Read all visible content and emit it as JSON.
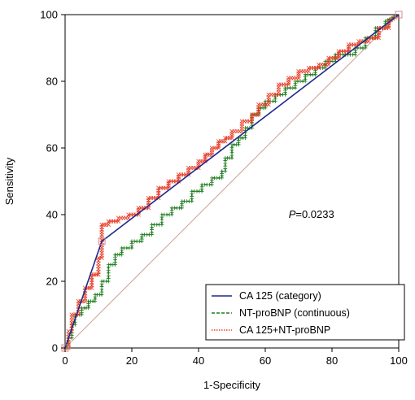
{
  "chart_data": {
    "type": "line",
    "xlabel": "1-Specificity",
    "ylabel": "Sensitivity",
    "xlim": [
      0,
      100
    ],
    "ylim": [
      0,
      100
    ],
    "xticks": [
      "0",
      "20",
      "40",
      "60",
      "80",
      "100"
    ],
    "yticks": [
      "0",
      "20",
      "40",
      "60",
      "80",
      "100"
    ],
    "legend_position": "bottom-right",
    "annotation": {
      "prefix": "P",
      "value": "=0.0233",
      "x": 67,
      "y": 39
    },
    "reference_line": {
      "x": [
        0,
        100
      ],
      "y": [
        0,
        100
      ],
      "color": "#c9a49a"
    },
    "series": [
      {
        "name": "CA 125 (category)",
        "color": "#1f2a8a",
        "style": "solid",
        "marker": "none",
        "x": [
          0,
          11,
          100
        ],
        "y": [
          0,
          32,
          100
        ]
      },
      {
        "name": "NT-proBNP (continuous)",
        "color": "#1e7d1e",
        "style": "dashed",
        "marker": "plus",
        "x": [
          0,
          1,
          1,
          2,
          2,
          3,
          3,
          5,
          5,
          7,
          7,
          9,
          9,
          11,
          11,
          13,
          13,
          15,
          15,
          17,
          17,
          20,
          20,
          23,
          23,
          26,
          26,
          29,
          29,
          32,
          32,
          35,
          35,
          38,
          38,
          41,
          41,
          44,
          44,
          47,
          47,
          48,
          48,
          50,
          50,
          52,
          52,
          54,
          54,
          56,
          56,
          58,
          58,
          60,
          60,
          63,
          63,
          66,
          66,
          69,
          69,
          72,
          72,
          75,
          75,
          78,
          78,
          81,
          81,
          84,
          84,
          87,
          87,
          90,
          90,
          93,
          93,
          96,
          96,
          100
        ],
        "y": [
          0,
          0,
          3,
          3,
          7,
          7,
          10,
          10,
          12,
          12,
          14,
          14,
          16,
          16,
          20,
          20,
          25,
          25,
          28,
          28,
          30,
          30,
          32,
          32,
          34,
          34,
          37,
          37,
          40,
          40,
          42,
          42,
          44,
          44,
          47,
          47,
          49,
          49,
          51,
          51,
          53,
          53,
          57,
          57,
          61,
          61,
          63,
          63,
          66,
          66,
          70,
          70,
          72,
          72,
          74,
          74,
          76,
          76,
          78,
          78,
          80,
          80,
          82,
          82,
          84,
          84,
          86,
          86,
          88,
          88,
          88,
          88,
          90,
          90,
          93,
          93,
          96,
          96,
          98,
          100
        ]
      },
      {
        "name": "CA 125+NT-proBNP",
        "color": "#e8412c",
        "style": "dotted",
        "marker": "x",
        "x": [
          0,
          1,
          1,
          2,
          2,
          4,
          4,
          6,
          6,
          8,
          8,
          10,
          10,
          11,
          11,
          13,
          13,
          16,
          16,
          19,
          19,
          22,
          22,
          25,
          25,
          28,
          28,
          31,
          31,
          34,
          34,
          37,
          37,
          40,
          40,
          42,
          42,
          44,
          44,
          46,
          46,
          48,
          48,
          50,
          50,
          53,
          53,
          56,
          56,
          58,
          58,
          61,
          61,
          64,
          64,
          67,
          67,
          70,
          70,
          73,
          73,
          76,
          76,
          79,
          79,
          82,
          82,
          85,
          85,
          88,
          88,
          91,
          91,
          94,
          94,
          97,
          97,
          100
        ],
        "y": [
          0,
          0,
          5,
          5,
          10,
          10,
          14,
          14,
          18,
          18,
          22,
          22,
          27,
          27,
          37,
          37,
          38,
          38,
          39,
          39,
          40,
          40,
          42,
          42,
          45,
          45,
          48,
          48,
          50,
          50,
          52,
          52,
          54,
          54,
          56,
          56,
          58,
          58,
          60,
          60,
          62,
          62,
          63,
          63,
          65,
          65,
          68,
          68,
          70,
          70,
          73,
          73,
          76,
          76,
          79,
          79,
          81,
          81,
          83,
          83,
          84,
          84,
          85,
          85,
          87,
          87,
          89,
          89,
          91,
          91,
          92,
          92,
          93,
          93,
          96,
          96,
          98,
          100
        ]
      }
    ]
  }
}
